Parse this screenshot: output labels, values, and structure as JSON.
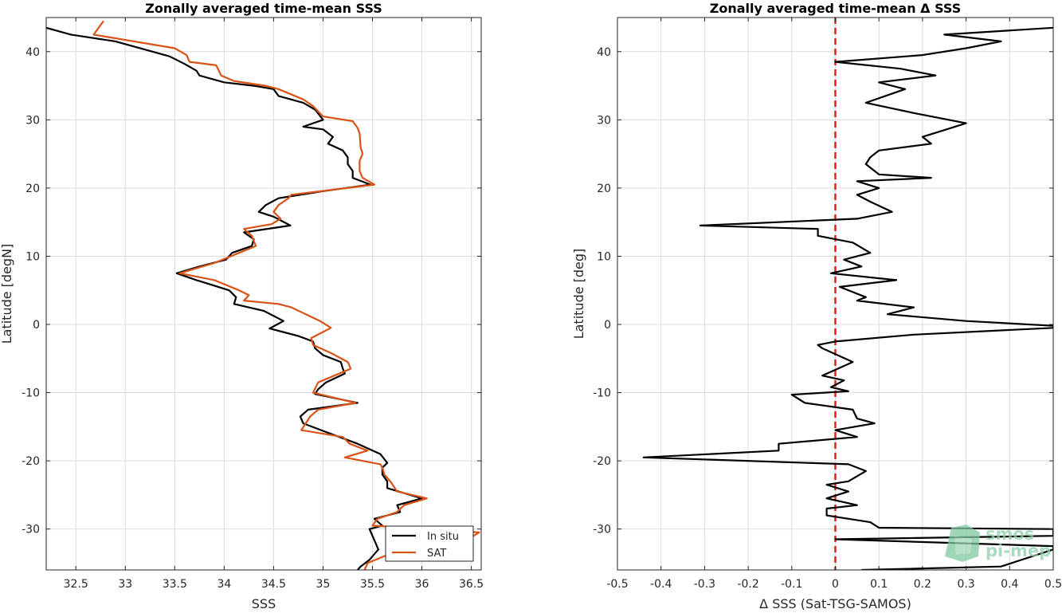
{
  "chart_data": [
    {
      "type": "line",
      "title": "Zonally averaged time-mean SSS",
      "xlabel": "SSS",
      "ylabel": "Latitude [degN]",
      "xlim": [
        32.2,
        36.6
      ],
      "ylim": [
        -36,
        45
      ],
      "grid": true,
      "legend_position": "bottom-right",
      "xticks": [
        32.5,
        33,
        33.5,
        34,
        34.5,
        35,
        35.5,
        36,
        36.5
      ],
      "yticks": [
        -30,
        -20,
        -10,
        0,
        10,
        20,
        30,
        40
      ],
      "series": [
        {
          "name": "In situ",
          "color": "#000000",
          "points": [
            [
              32.2,
              43.5
            ],
            [
              32.45,
              42.5
            ],
            [
              32.9,
              41.5
            ],
            [
              33.2,
              40.3
            ],
            [
              33.45,
              39.3
            ],
            [
              33.6,
              38.2
            ],
            [
              33.72,
              37.2
            ],
            [
              33.75,
              36.5
            ],
            [
              34.0,
              35.5
            ],
            [
              34.3,
              35.0
            ],
            [
              34.5,
              34.5
            ],
            [
              34.55,
              33.5
            ],
            [
              34.8,
              32.5
            ],
            [
              34.92,
              31.5
            ],
            [
              35.0,
              30.0
            ],
            [
              34.8,
              29.0
            ],
            [
              35.0,
              28.6
            ],
            [
              35.1,
              27.5
            ],
            [
              35.05,
              26.5
            ],
            [
              35.2,
              25.5
            ],
            [
              35.25,
              24.5
            ],
            [
              35.25,
              23.5
            ],
            [
              35.3,
              22.5
            ],
            [
              35.3,
              21.5
            ],
            [
              35.48,
              20.5
            ],
            [
              34.98,
              19.5
            ],
            [
              34.55,
              18.5
            ],
            [
              34.42,
              17.5
            ],
            [
              34.35,
              16.5
            ],
            [
              34.5,
              15.8
            ],
            [
              34.67,
              14.5
            ],
            [
              34.2,
              13.5
            ],
            [
              34.3,
              12.5
            ],
            [
              34.28,
              11.5
            ],
            [
              34.08,
              10.5
            ],
            [
              34.02,
              9.5
            ],
            [
              33.75,
              8.5
            ],
            [
              33.52,
              7.5
            ],
            [
              33.72,
              6.5
            ],
            [
              34.05,
              5.0
            ],
            [
              34.12,
              4.0
            ],
            [
              34.1,
              3.0
            ],
            [
              34.4,
              2.0
            ],
            [
              34.6,
              0.5
            ],
            [
              34.46,
              -0.6
            ],
            [
              34.75,
              -1.7
            ],
            [
              34.9,
              -2.5
            ],
            [
              34.92,
              -3.5
            ],
            [
              35.0,
              -4.5
            ],
            [
              35.18,
              -5.5
            ],
            [
              35.2,
              -6.5
            ],
            [
              35.22,
              -7.2
            ],
            [
              35.03,
              -8.5
            ],
            [
              34.95,
              -9.5
            ],
            [
              34.92,
              -10.2
            ],
            [
              35.35,
              -11.5
            ],
            [
              34.85,
              -12.5
            ],
            [
              34.77,
              -13.5
            ],
            [
              34.8,
              -14.5
            ],
            [
              34.98,
              -15.5
            ],
            [
              35.35,
              -17.5
            ],
            [
              35.58,
              -19.0
            ],
            [
              35.65,
              -20.3
            ],
            [
              35.6,
              -21.0
            ],
            [
              35.6,
              -22.0
            ],
            [
              35.65,
              -23.0
            ],
            [
              35.65,
              -24.0
            ],
            [
              36.0,
              -25.5
            ],
            [
              35.75,
              -26.5
            ],
            [
              35.78,
              -27.5
            ],
            [
              35.52,
              -28.5
            ],
            [
              35.6,
              -29.5
            ],
            [
              35.47,
              -30.0
            ],
            [
              35.56,
              -33.0
            ],
            [
              35.47,
              -34.5
            ],
            [
              35.38,
              -35.5
            ],
            [
              35.35,
              -36.0
            ]
          ]
        },
        {
          "name": "SAT",
          "color": "#d95319",
          "points": [
            [
              32.78,
              44.5
            ],
            [
              32.68,
              42.5
            ],
            [
              33.5,
              40.5
            ],
            [
              33.62,
              39.5
            ],
            [
              33.65,
              38.5
            ],
            [
              33.92,
              38.0
            ],
            [
              33.97,
              36.5
            ],
            [
              34.1,
              35.7
            ],
            [
              34.42,
              35.0
            ],
            [
              34.55,
              34.5
            ],
            [
              34.8,
              33.0
            ],
            [
              34.9,
              32.0
            ],
            [
              35.0,
              30.5
            ],
            [
              35.3,
              29.8
            ],
            [
              35.35,
              28.8
            ],
            [
              35.37,
              28.0
            ],
            [
              35.38,
              26.0
            ],
            [
              35.4,
              25.0
            ],
            [
              35.37,
              24.0
            ],
            [
              35.37,
              22.5
            ],
            [
              35.4,
              21.5
            ],
            [
              35.52,
              20.5
            ],
            [
              34.68,
              19.0
            ],
            [
              34.65,
              18.5
            ],
            [
              34.55,
              17.5
            ],
            [
              34.5,
              16.5
            ],
            [
              34.57,
              15.5
            ],
            [
              34.48,
              14.7
            ],
            [
              34.2,
              14.0
            ],
            [
              34.28,
              13.0
            ],
            [
              34.32,
              11.5
            ],
            [
              34.15,
              10.5
            ],
            [
              34.07,
              10.0
            ],
            [
              33.9,
              9.0
            ],
            [
              33.78,
              8.5
            ],
            [
              33.55,
              7.5
            ],
            [
              33.9,
              6.5
            ],
            [
              34.15,
              5.0
            ],
            [
              34.25,
              4.3
            ],
            [
              34.2,
              3.5
            ],
            [
              34.55,
              3.0
            ],
            [
              34.68,
              2.5
            ],
            [
              34.97,
              0.5
            ],
            [
              35.08,
              -0.5
            ],
            [
              34.88,
              -2.0
            ],
            [
              34.9,
              -3.0
            ],
            [
              35.08,
              -4.2
            ],
            [
              35.25,
              -5.5
            ],
            [
              35.28,
              -6.5
            ],
            [
              34.95,
              -8.5
            ],
            [
              34.9,
              -10.0
            ],
            [
              35.33,
              -11.5
            ],
            [
              34.95,
              -12.5
            ],
            [
              34.87,
              -13.5
            ],
            [
              34.78,
              -15.5
            ],
            [
              35.2,
              -16.5
            ],
            [
              35.27,
              -17.5
            ],
            [
              35.45,
              -18.5
            ],
            [
              35.22,
              -19.5
            ],
            [
              35.58,
              -20.5
            ],
            [
              35.6,
              -21.0
            ],
            [
              35.62,
              -22.0
            ],
            [
              35.68,
              -23.0
            ],
            [
              35.75,
              -24.5
            ],
            [
              36.05,
              -25.5
            ],
            [
              35.82,
              -26.5
            ],
            [
              35.75,
              -27.5
            ],
            [
              35.55,
              -28.5
            ],
            [
              35.5,
              -29.5
            ],
            [
              36.58,
              -30.5
            ],
            [
              36.5,
              -31.2
            ],
            [
              35.65,
              -33.8
            ],
            [
              35.45,
              -35.0
            ],
            [
              35.42,
              -36.0
            ]
          ]
        }
      ]
    },
    {
      "type": "line",
      "title": "Zonally averaged time-mean Δ SSS",
      "xlabel": "Δ SSS (Sat-TSG-SAMOS)",
      "ylabel": "Latitude [deg]",
      "xlim": [
        -0.5,
        0.5
      ],
      "ylim": [
        -36,
        45
      ],
      "grid": true,
      "xticks": [
        -0.5,
        -0.4,
        -0.3,
        -0.2,
        -0.1,
        0,
        0.1,
        0.2,
        0.3,
        0.4,
        0.5
      ],
      "xticklabels": [
        "-0.5",
        "-0.4",
        "-0.3",
        "-0.2",
        "-0.1",
        "0",
        "0.1",
        "0.2",
        "0.3",
        "0.4",
        "0.5"
      ],
      "yticks": [
        -30,
        -20,
        -10,
        0,
        10,
        20,
        30,
        40
      ],
      "reference_line": {
        "x": 0,
        "color": "#e02020",
        "style": "dashed"
      },
      "series": [
        {
          "color": "#000000",
          "points": [
            [
              0.5,
              43.5
            ],
            [
              0.25,
              42.5
            ],
            [
              0.38,
              41.5
            ],
            [
              0.3,
              40.5
            ],
            [
              0.2,
              39.5
            ],
            [
              0.0,
              38.5
            ],
            [
              0.15,
              37.5
            ],
            [
              0.23,
              36.5
            ],
            [
              0.1,
              35.5
            ],
            [
              0.16,
              34.5
            ],
            [
              0.07,
              32.5
            ],
            [
              0.18,
              31.0
            ],
            [
              0.3,
              29.5
            ],
            [
              0.25,
              28.5
            ],
            [
              0.2,
              27.5
            ],
            [
              0.22,
              26.5
            ],
            [
              0.1,
              25.5
            ],
            [
              0.08,
              24.5
            ],
            [
              0.07,
              23.5
            ],
            [
              0.1,
              22.0
            ],
            [
              0.22,
              21.5
            ],
            [
              0.05,
              21.0
            ],
            [
              0.1,
              20.0
            ],
            [
              0.05,
              19.0
            ],
            [
              0.08,
              18.0
            ],
            [
              0.13,
              16.5
            ],
            [
              0.05,
              15.5
            ],
            [
              -0.31,
              14.5
            ],
            [
              -0.04,
              14.0
            ],
            [
              -0.04,
              13.0
            ],
            [
              0.04,
              12.0
            ],
            [
              0.08,
              10.5
            ],
            [
              0.02,
              9.5
            ],
            [
              0.06,
              8.5
            ],
            [
              -0.01,
              7.5
            ],
            [
              0.14,
              6.5
            ],
            [
              0.01,
              5.5
            ],
            [
              0.07,
              4.0
            ],
            [
              0.05,
              3.5
            ],
            [
              0.18,
              2.5
            ],
            [
              0.12,
              1.5
            ],
            [
              0.3,
              0.5
            ],
            [
              0.5,
              -0.2
            ],
            [
              0.5,
              -0.5
            ],
            [
              0.18,
              -1.5
            ],
            [
              0.0,
              -2.5
            ],
            [
              -0.04,
              -3.0
            ],
            [
              -0.03,
              -3.5
            ],
            [
              0.04,
              -5.5
            ],
            [
              -0.03,
              -7.5
            ],
            [
              0.02,
              -8.2
            ],
            [
              -0.01,
              -9.2
            ],
            [
              0.03,
              -9.8
            ],
            [
              -0.1,
              -10.3
            ],
            [
              -0.07,
              -11.5
            ],
            [
              0.04,
              -12.5
            ],
            [
              0.05,
              -13.8
            ],
            [
              0.09,
              -14.5
            ],
            [
              0.0,
              -15.5
            ],
            [
              0.05,
              -16.5
            ],
            [
              -0.13,
              -17.5
            ],
            [
              -0.13,
              -18.5
            ],
            [
              -0.44,
              -19.5
            ],
            [
              0.03,
              -20.5
            ],
            [
              0.07,
              -21.5
            ],
            [
              0.03,
              -23.0
            ],
            [
              -0.02,
              -23.5
            ],
            [
              0.03,
              -24.5
            ],
            [
              -0.02,
              -25.5
            ],
            [
              0.05,
              -26.5
            ],
            [
              -0.02,
              -27.0
            ],
            [
              -0.02,
              -28.0
            ],
            [
              0.08,
              -29.0
            ],
            [
              0.1,
              -29.8
            ],
            [
              0.5,
              -30.0
            ],
            [
              0.5,
              -31.0
            ],
            [
              0.0,
              -31.5
            ],
            [
              0.5,
              -32.5
            ],
            [
              0.5,
              -33.0
            ],
            [
              0.38,
              -35.5
            ],
            [
              0.06,
              -36.0
            ]
          ]
        }
      ]
    }
  ],
  "logo": {
    "line1": "smos",
    "line2": "pi-mep"
  }
}
